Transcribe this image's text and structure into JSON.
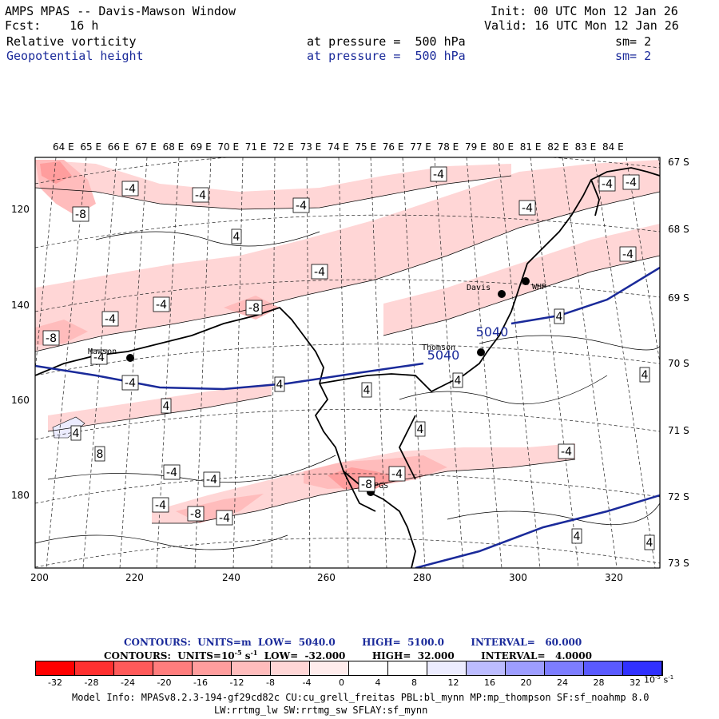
{
  "header": {
    "title": "AMPS MPAS -- Davis-Mawson Window",
    "fcst": "Fcst:    16 h",
    "init": "Init: 00 UTC Mon 12 Jan 26",
    "valid": "Valid: 16 UTC Mon 12 Jan 26",
    "field1": {
      "name": "Relative vorticity",
      "level": "at pressure =  500 hPa",
      "sm": "sm= 2"
    },
    "field2": {
      "name": "Geopotential height",
      "level": "at pressure =  500 hPa",
      "sm": "sm= 2"
    }
  },
  "map": {
    "lon_labels": [
      "64 E",
      "65 E",
      "66 E",
      "67 E",
      "68 E",
      "69 E",
      "70 E",
      "71 E",
      "72 E",
      "73 E",
      "74 E",
      "75 E",
      "76 E",
      "77 E",
      "78 E",
      "79 E",
      "80 E",
      "81 E",
      "82 E",
      "83 E",
      "84 E"
    ],
    "lat_labels": [
      "67 S",
      "68 S",
      "69 S",
      "70 S",
      "71 S",
      "72 S",
      "73 S"
    ],
    "y_ticks": [
      "120",
      "140",
      "160",
      "180"
    ],
    "x_ticks": [
      "200",
      "220",
      "240",
      "260",
      "280",
      "300",
      "320"
    ],
    "stations": [
      {
        "name": "Mawson"
      },
      {
        "name": "Thomson"
      },
      {
        "name": "Davis"
      },
      {
        "name": "WHP"
      },
      {
        "name": "PGS"
      }
    ],
    "height_labels": [
      "5040",
      "5040"
    ],
    "vort_labels": [
      "-4",
      "-4",
      "-8",
      "-4",
      "-4",
      "4",
      "-4",
      "-4",
      "-8",
      "-4",
      "-8",
      "-4",
      "-4",
      "-4",
      "-4",
      "-4",
      "4",
      "-4",
      "4",
      "4",
      "4",
      "4",
      "8",
      "4",
      "-4",
      "-4",
      "-4",
      "-8",
      "-4",
      "-8",
      "4",
      "-4",
      "4",
      "4",
      "-4",
      "4"
    ]
  },
  "footer": {
    "contour1": "CONTOURS:  UNITS=m  LOW=  5040.0        HIGH=  5100.0        INTERVAL=   60.000",
    "contour2": "CONTOURS:  UNITS=10",
    "contour2_exp": "-5",
    "contour2_rest": " s",
    "contour2_exp2": "-1",
    "contour2_tail": "  LOW=  -32.000        HIGH=  32.000        INTERVAL=   4.0000",
    "colorbar": {
      "labels": [
        "-32",
        "-28",
        "-24",
        "-20",
        "-16",
        "-12",
        "-8",
        "-4",
        "0",
        "4",
        "8",
        "12",
        "16",
        "20",
        "24",
        "28",
        "32"
      ],
      "units": "10",
      "units_exp": "-5",
      "units_s": "s",
      "units_exp2": "-1",
      "colors": [
        "#ff0000",
        "#ff3030",
        "#ff5a5a",
        "#ff7d7d",
        "#ff9d9d",
        "#ffbcbc",
        "#ffd6d6",
        "#ffecec",
        "#ffffff",
        "#ffffff",
        "#ececff",
        "#bcbcff",
        "#9d9dff",
        "#7d7dff",
        "#5a5aff",
        "#3030ff",
        "#0000ff"
      ]
    },
    "model_info_1": "Model Info: MPASv8.2.3-194-gf29cd82c CU:cu_grell_freitas PBL:bl_mynn MP:mp_thompson SF:sf_noahmp 8.0",
    "model_info_2": "LW:rrtmg_lw SW:rrtmg_sw SFLAY:sf_mynn"
  }
}
